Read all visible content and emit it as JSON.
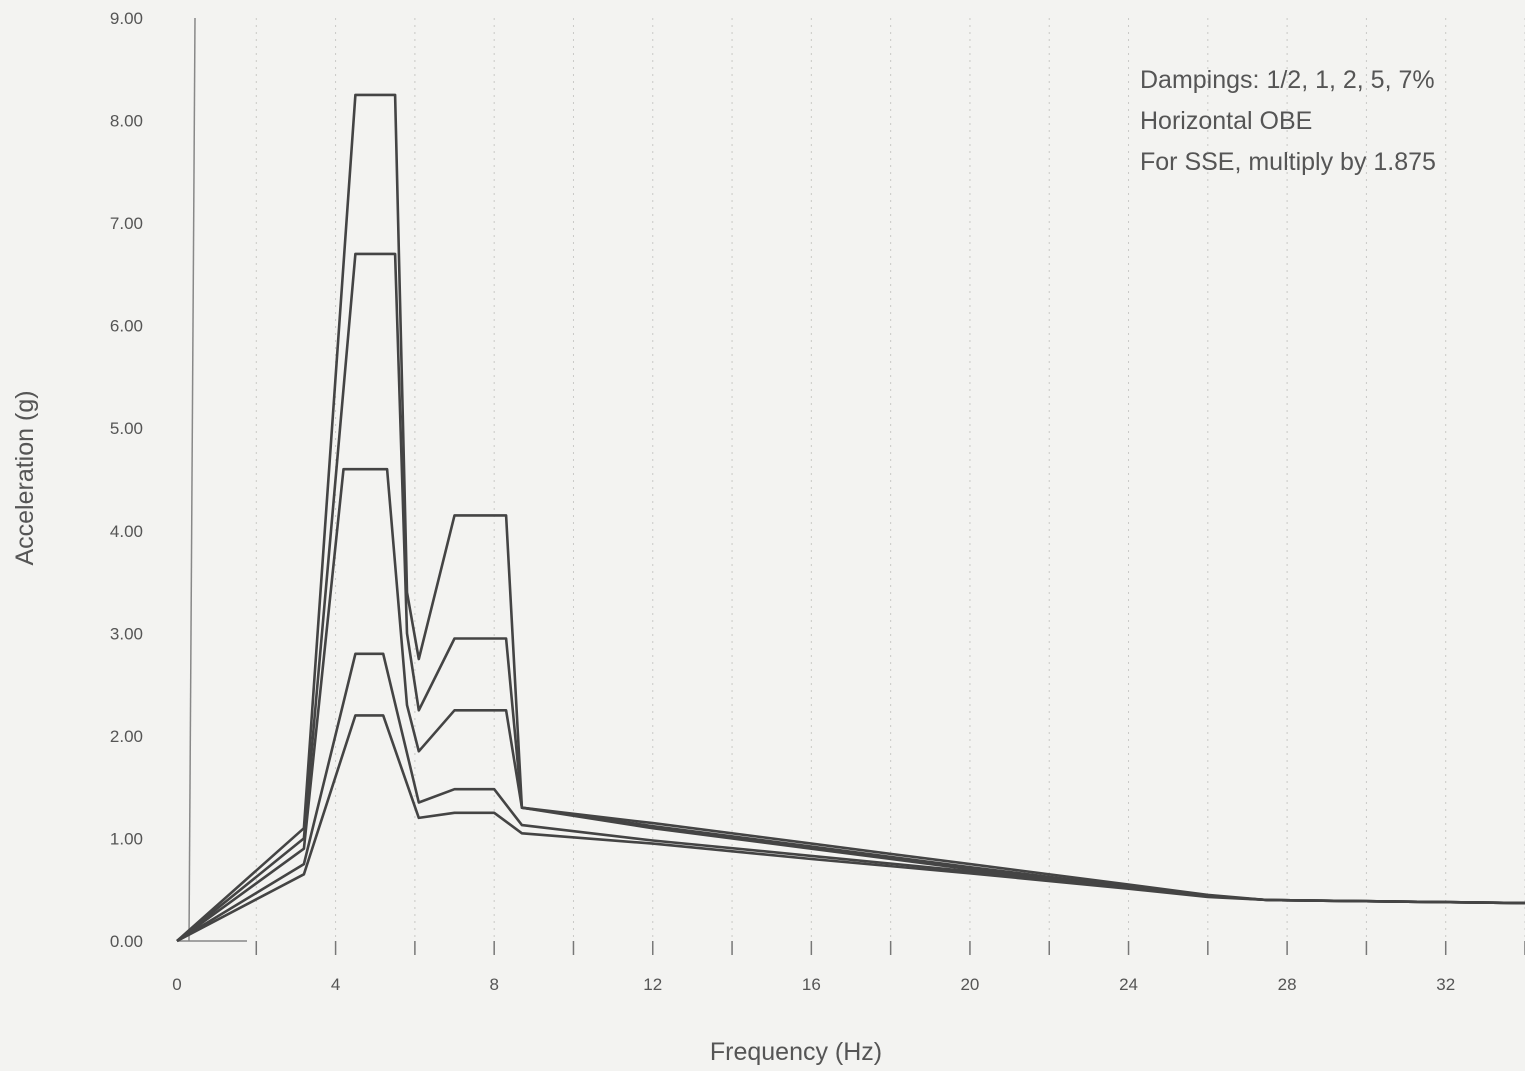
{
  "chart_data": {
    "type": "line",
    "xlabel": "Frequency (Hz)",
    "ylabel": "Acceleration (g)",
    "xlim": [
      0,
      34
    ],
    "ylim": [
      0,
      9
    ],
    "x_ticks": [
      0,
      4,
      8,
      12,
      16,
      20,
      24,
      28,
      32
    ],
    "y_ticks": [
      "0.00",
      "1.00",
      "2.00",
      "3.00",
      "4.00",
      "5.00",
      "6.00",
      "7.00",
      "8.00",
      "9.00"
    ],
    "grid": "vertical dotted",
    "legend": "none",
    "annotations": [
      "Dampings:  1/2, 1, 2, 5, 7%",
      "Horizontal OBE",
      "For SSE, multiply by  1.875"
    ],
    "line_color": "#444444",
    "series": [
      {
        "x": [
          0,
          3.2,
          4.5,
          5.5,
          5.8,
          6.1,
          7.0,
          8.3,
          8.7,
          12,
          16,
          20,
          24,
          26,
          27.5,
          34
        ],
        "y": [
          0,
          1.1,
          8.25,
          8.25,
          3.4,
          2.75,
          4.15,
          4.15,
          1.3,
          1.15,
          0.95,
          0.75,
          0.55,
          0.45,
          0.4,
          0.37
        ]
      },
      {
        "x": [
          0,
          3.2,
          4.5,
          5.5,
          5.8,
          6.1,
          7.0,
          8.3,
          8.7,
          12,
          16,
          20,
          24,
          26,
          27.5,
          34
        ],
        "y": [
          0,
          1.0,
          6.7,
          6.7,
          3.0,
          2.25,
          2.95,
          2.95,
          1.3,
          1.12,
          0.92,
          0.72,
          0.53,
          0.44,
          0.4,
          0.37
        ]
      },
      {
        "x": [
          0,
          3.2,
          4.2,
          5.3,
          5.8,
          6.1,
          7.0,
          8.3,
          8.7,
          12,
          16,
          20,
          24,
          26,
          27.5,
          34
        ],
        "y": [
          0,
          0.9,
          4.6,
          4.6,
          2.3,
          1.85,
          2.25,
          2.25,
          1.3,
          1.1,
          0.9,
          0.7,
          0.52,
          0.44,
          0.4,
          0.37
        ]
      },
      {
        "x": [
          0,
          3.2,
          4.5,
          5.2,
          6.1,
          7.0,
          8.0,
          8.7,
          12,
          16,
          20,
          24,
          26,
          27.5,
          34
        ],
        "y": [
          0,
          0.75,
          2.8,
          2.8,
          1.35,
          1.48,
          1.48,
          1.13,
          0.98,
          0.83,
          0.68,
          0.52,
          0.44,
          0.4,
          0.37
        ]
      },
      {
        "x": [
          0,
          3.2,
          4.5,
          5.2,
          6.1,
          7.0,
          8.0,
          8.7,
          12,
          16,
          20,
          24,
          26,
          27.5,
          34
        ],
        "y": [
          0,
          0.65,
          2.2,
          2.2,
          1.2,
          1.25,
          1.25,
          1.05,
          0.95,
          0.8,
          0.66,
          0.51,
          0.43,
          0.4,
          0.37
        ]
      }
    ]
  }
}
